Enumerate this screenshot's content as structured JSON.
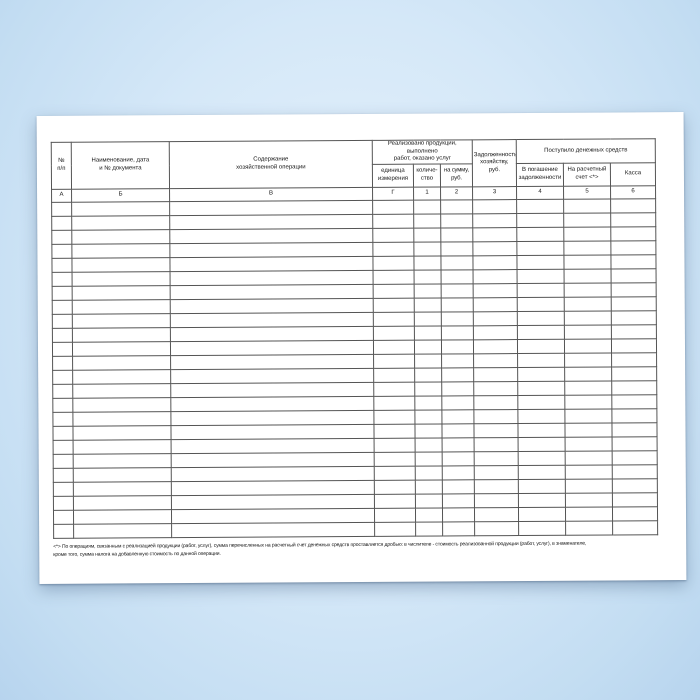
{
  "colors": {
    "background": "#d5e8f8",
    "paper": "#ffffff",
    "table_line": "#555555"
  },
  "table": {
    "header": {
      "col_num": "№\nп/п",
      "col_document": "Наименование, дата\nи № документа",
      "col_operation": "Содержание\nхозяйственной операции",
      "group_realized": "Реализовано продукции, выполнено\nработ, оказано услуг",
      "col_unit": "единица\nизмерения",
      "col_quantity": "количе-\nство",
      "col_amount": "на сумму, руб.",
      "col_debt": "Задолженность\nхозяйству, руб.",
      "group_received": "Поступило денежных средств",
      "col_repayment": "В погашение\nзадолженности",
      "col_settlement": "На расчетный\nсчет <*>",
      "col_cash": "Касса"
    },
    "codes": [
      "А",
      "Б",
      "В",
      "Г",
      "1",
      "2",
      "3",
      "4",
      "5",
      "6"
    ],
    "empty_row_count": 24
  },
  "footnote": {
    "text": "<*> По операциям, связанным с реализацией продукции (работ, услуг), сумма перечисленных на расчетный счет денежных средств проставляется дробью: в числителе - стоимость реализованной продукции (работ, услуг), в знаменателе,\nкроме того, сумма налога на добавленную стоимость по данной операции."
  }
}
